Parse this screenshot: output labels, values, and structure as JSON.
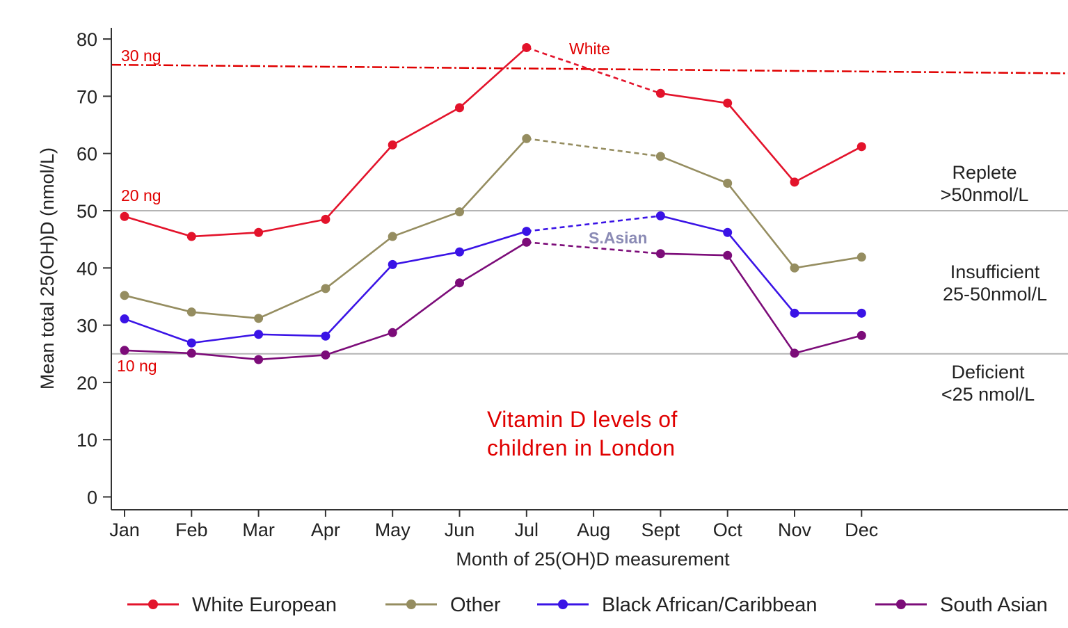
{
  "chart_data": {
    "type": "line",
    "title_lines": [
      "Vitamin D levels of",
      "children in London"
    ],
    "xlabel": "Month of 25(OH)D measurement",
    "ylabel": "Mean total 25(OH)D (nmol/L)",
    "categories": [
      "Jan",
      "Feb",
      "Mar",
      "Apr",
      "May",
      "Jun",
      "Jul",
      "Aug",
      "Sept",
      "Oct",
      "Nov",
      "Dec"
    ],
    "ylim": [
      0,
      80
    ],
    "yticks": [
      0,
      10,
      20,
      30,
      40,
      50,
      60,
      70,
      80
    ],
    "grid": false,
    "legend_position": "bottom",
    "series": [
      {
        "name": "White European",
        "color": "#e3132b",
        "values": [
          49,
          45.5,
          46.2,
          48.5,
          61.5,
          68,
          78.5,
          null,
          70.5,
          68.8,
          55,
          61.2
        ]
      },
      {
        "name": "Other",
        "color": "#958d60",
        "values": [
          35.2,
          32.3,
          31.2,
          36.4,
          45.5,
          49.8,
          62.6,
          null,
          59.5,
          54.8,
          40,
          41.9
        ]
      },
      {
        "name": "Black African/Caribbean",
        "color": "#3a13e6",
        "values": [
          31.1,
          26.9,
          28.4,
          28.1,
          40.6,
          42.8,
          46.4,
          null,
          49.1,
          46.2,
          32.1,
          32.1
        ]
      },
      {
        "name": "South Asian",
        "color": "#7c0c79",
        "values": [
          25.6,
          25.1,
          24,
          24.8,
          28.7,
          37.4,
          44.5,
          null,
          42.5,
          42.2,
          25.1,
          28.2
        ]
      }
    ],
    "reference_lines": [
      {
        "value": 50,
        "color": "#b4b4b4",
        "style": "solid"
      },
      {
        "value": 25,
        "color": "#b4b4b4",
        "style": "solid"
      },
      {
        "value_start": 75.5,
        "value_end": 74,
        "color": "#e00000",
        "style": "dash-dot"
      }
    ],
    "ng_labels": [
      "30 ng",
      "20 ng",
      "10 ng"
    ],
    "zones": [
      {
        "lines": [
          "Replete",
          ">50nmol/L"
        ]
      },
      {
        "lines": [
          "Insufficient",
          "25-50nmol/L"
        ]
      },
      {
        "lines": [
          "Deficient",
          "<25 nmol/L"
        ]
      }
    ],
    "annotations": {
      "white": "White",
      "sasian": "S.Asian"
    }
  }
}
